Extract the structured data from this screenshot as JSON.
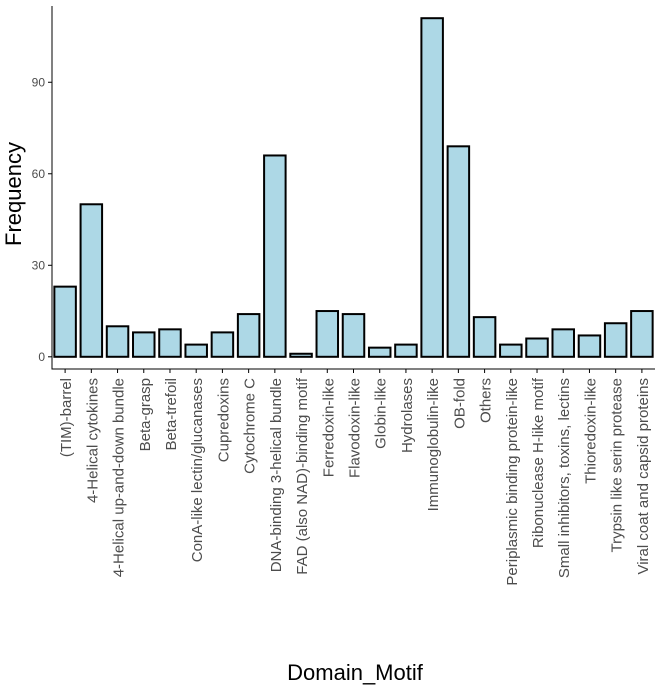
{
  "chart_data": {
    "type": "bar",
    "title": "",
    "xlabel": "Domain_Motif",
    "ylabel": "Frequency",
    "ylim": [
      -4,
      115
    ],
    "yticks": [
      0,
      30,
      60,
      90
    ],
    "grid": false,
    "legend": "none",
    "colors": {
      "bar_fill": "#ADD8E6",
      "bar_stroke": "#000000",
      "axis": "#000000",
      "tick_label": "#4d4d4d"
    },
    "categories": [
      "(TIM)-barrel",
      "4-Helical cytokines",
      "4-Helical up-and-down bundle",
      "Beta-grasp",
      "Beta-trefoil",
      "ConA-like lectin/glucanases",
      "Cupredoxins",
      "Cytochrome C",
      "DNA-binding 3-helical bundle",
      "FAD (also NAD)-binding motif",
      "Ferredoxin-like",
      "Flavodoxin-like",
      "Globin-like",
      "Hydrolases",
      "Immunoglobulin-like",
      "OB-fold",
      "Others",
      "Periplasmic binding protein-like",
      "Ribonuclease H-like motif",
      "Small inhibitors, toxins, lectins",
      "Thioredoxin-like",
      "Trypsin like serin protease",
      "Viral coat and capsid proteins"
    ],
    "values": [
      23,
      50,
      10,
      8,
      9,
      4,
      8,
      14,
      66,
      1,
      15,
      14,
      3,
      4,
      111,
      69,
      13,
      4,
      6,
      9,
      7,
      11,
      15
    ]
  }
}
